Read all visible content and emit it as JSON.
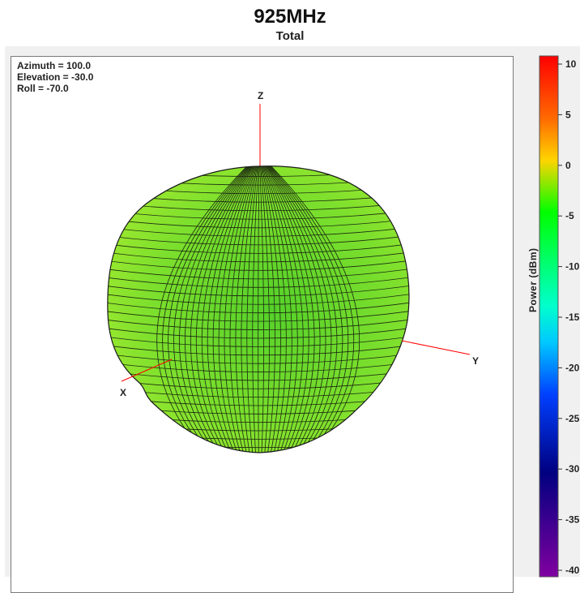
{
  "title": "925MHz",
  "subtitle": "Total",
  "view": {
    "azimuth": "Azimuth = 100.0",
    "elevation": "Elevation = -30.0",
    "roll": "Roll = -70.0"
  },
  "axes": {
    "x": "X",
    "y": "Y",
    "z": "Z"
  },
  "colorbar": {
    "label": "Power  (dBm)",
    "ticks": [
      "10",
      "5",
      "0",
      "-5",
      "-10",
      "-15",
      "-20",
      "-25",
      "-30",
      "-35",
      "-40"
    ]
  },
  "chart_data": {
    "type": "3d-radiation-pattern",
    "title": "925MHz",
    "subtitle": "Total",
    "view": {
      "azimuth": 100.0,
      "elevation": -30.0,
      "roll": -70.0
    },
    "colorbar": {
      "label": "Power  (dBm)",
      "range": [
        -40,
        10
      ],
      "ticks": [
        10,
        5,
        0,
        -5,
        -10,
        -15,
        -20,
        -25,
        -30,
        -35,
        -40
      ],
      "colormap": [
        "#ff0000",
        "#ff8000",
        "#ffff00",
        "#00ff00",
        "#00ffff",
        "#0000ff",
        "#000080",
        "#800080"
      ]
    },
    "surface_color": "#7de02a",
    "axis_color": "#ff0000"
  }
}
